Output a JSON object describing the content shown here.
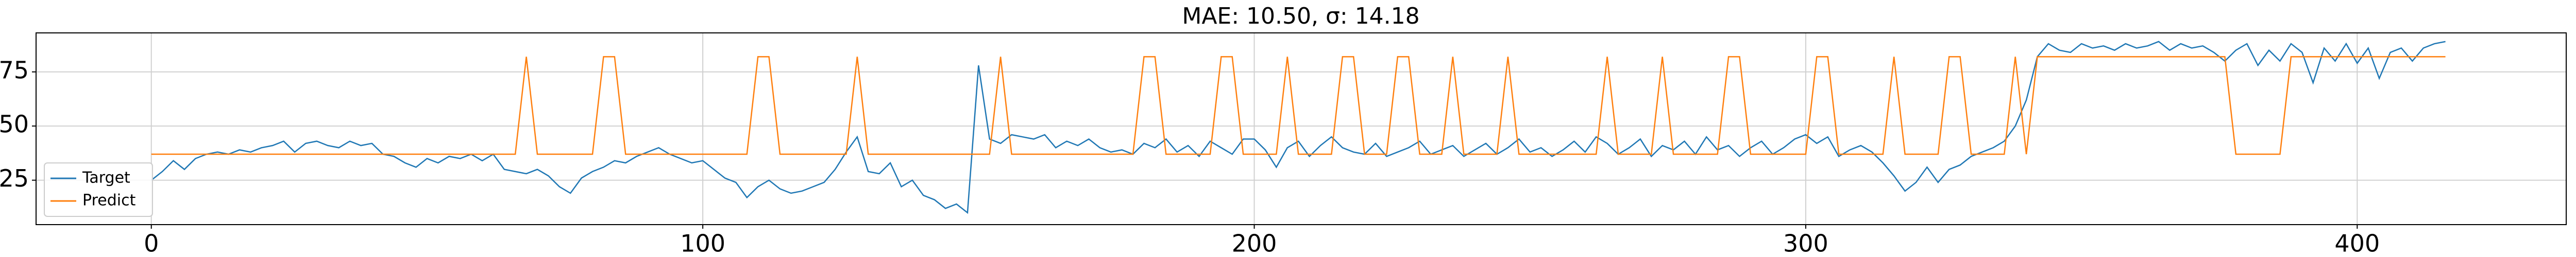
{
  "chart_data": {
    "type": "line",
    "title": "MAE: 10.50, σ: 14.18",
    "x": [
      0,
      2,
      4,
      6,
      8,
      10,
      12,
      14,
      16,
      18,
      20,
      22,
      24,
      26,
      28,
      30,
      32,
      34,
      36,
      38,
      40,
      42,
      44,
      46,
      48,
      50,
      52,
      54,
      56,
      58,
      60,
      62,
      64,
      66,
      68,
      70,
      72,
      74,
      76,
      78,
      80,
      82,
      84,
      86,
      88,
      90,
      92,
      94,
      96,
      98,
      100,
      102,
      104,
      106,
      108,
      110,
      112,
      114,
      116,
      118,
      120,
      122,
      124,
      126,
      128,
      130,
      132,
      134,
      136,
      138,
      140,
      142,
      144,
      146,
      148,
      150,
      152,
      154,
      156,
      158,
      160,
      162,
      164,
      166,
      168,
      170,
      172,
      174,
      176,
      178,
      180,
      182,
      184,
      186,
      188,
      190,
      192,
      194,
      196,
      198,
      200,
      202,
      204,
      206,
      208,
      210,
      212,
      214,
      216,
      218,
      220,
      222,
      224,
      226,
      228,
      230,
      232,
      234,
      236,
      238,
      240,
      242,
      244,
      246,
      248,
      250,
      252,
      254,
      256,
      258,
      260,
      262,
      264,
      266,
      268,
      270,
      272,
      274,
      276,
      278,
      280,
      282,
      284,
      286,
      288,
      290,
      292,
      294,
      296,
      298,
      300,
      302,
      304,
      306,
      308,
      310,
      312,
      314,
      316,
      318,
      320,
      322,
      324,
      326,
      328,
      330,
      332,
      334,
      336,
      338,
      340,
      342,
      344,
      346,
      348,
      350,
      352,
      354,
      356,
      358,
      360,
      362,
      364,
      366,
      368,
      370,
      372,
      374,
      376,
      378,
      380,
      382,
      384,
      386,
      388,
      390,
      392,
      394,
      396,
      398,
      400,
      402,
      404,
      406,
      408,
      410,
      412,
      414,
      416
    ],
    "series": [
      {
        "name": "Target",
        "color": "#1f77b4",
        "values": [
          25,
          29,
          34,
          30,
          35,
          37,
          38,
          37,
          39,
          38,
          40,
          41,
          43,
          38,
          42,
          43,
          41,
          40,
          43,
          41,
          42,
          37,
          36,
          33,
          31,
          35,
          33,
          36,
          35,
          37,
          34,
          37,
          30,
          29,
          28,
          30,
          27,
          22,
          19,
          26,
          29,
          31,
          34,
          33,
          36,
          38,
          40,
          37,
          35,
          33,
          34,
          30,
          26,
          24,
          17,
          22,
          25,
          21,
          19,
          20,
          22,
          24,
          30,
          38,
          45,
          29,
          28,
          33,
          22,
          25,
          18,
          16,
          12,
          14,
          10,
          78,
          44,
          42,
          46,
          45,
          44,
          46,
          40,
          43,
          41,
          44,
          40,
          38,
          39,
          37,
          42,
          40,
          44,
          38,
          41,
          36,
          43,
          40,
          37,
          44,
          44,
          39,
          31,
          40,
          43,
          36,
          41,
          45,
          40,
          38,
          37,
          42,
          36,
          38,
          40,
          43,
          37,
          39,
          41,
          36,
          39,
          42,
          37,
          40,
          44,
          38,
          40,
          36,
          39,
          43,
          38,
          45,
          42,
          37,
          40,
          44,
          36,
          41,
          39,
          43,
          37,
          45,
          39,
          41,
          36,
          40,
          43,
          37,
          40,
          44,
          46,
          42,
          45,
          36,
          39,
          41,
          38,
          33,
          27,
          20,
          24,
          31,
          24,
          30,
          32,
          36,
          38,
          40,
          43,
          50,
          62,
          82,
          88,
          85,
          84,
          88,
          86,
          87,
          85,
          88,
          86,
          87,
          89,
          85,
          88,
          86,
          87,
          84,
          80,
          85,
          88,
          78,
          85,
          80,
          88,
          84,
          70,
          86,
          80,
          88,
          79,
          86,
          72,
          84,
          86,
          80,
          86,
          88,
          89
        ]
      },
      {
        "name": "Predict",
        "color": "#ff7f0e",
        "values": [
          37,
          37,
          37,
          37,
          37,
          37,
          37,
          37,
          37,
          37,
          37,
          37,
          37,
          37,
          37,
          37,
          37,
          37,
          37,
          37,
          37,
          37,
          37,
          37,
          37,
          37,
          37,
          37,
          37,
          37,
          37,
          37,
          37,
          37,
          82,
          37,
          37,
          37,
          37,
          37,
          37,
          82,
          82,
          37,
          37,
          37,
          37,
          37,
          37,
          37,
          37,
          37,
          37,
          37,
          37,
          82,
          82,
          37,
          37,
          37,
          37,
          37,
          37,
          37,
          82,
          37,
          37,
          37,
          37,
          37,
          37,
          37,
          37,
          37,
          37,
          37,
          37,
          82,
          37,
          37,
          37,
          37,
          37,
          37,
          37,
          37,
          37,
          37,
          37,
          37,
          82,
          82,
          37,
          37,
          37,
          37,
          37,
          82,
          82,
          37,
          37,
          37,
          37,
          82,
          37,
          37,
          37,
          37,
          82,
          82,
          37,
          37,
          37,
          82,
          82,
          37,
          37,
          37,
          82,
          37,
          37,
          37,
          37,
          82,
          37,
          37,
          37,
          37,
          37,
          37,
          37,
          37,
          82,
          37,
          37,
          37,
          37,
          82,
          37,
          37,
          37,
          37,
          37,
          82,
          82,
          37,
          37,
          37,
          37,
          37,
          37,
          82,
          82,
          37,
          37,
          37,
          37,
          37,
          82,
          37,
          37,
          37,
          37,
          82,
          82,
          37,
          37,
          37,
          37,
          82,
          37,
          82,
          82,
          82,
          82,
          82,
          82,
          82,
          82,
          82,
          82,
          82,
          82,
          82,
          82,
          82,
          82,
          82,
          82,
          37,
          37,
          37,
          37,
          37,
          82,
          82,
          82,
          82,
          82,
          82,
          82,
          82,
          82,
          82,
          82,
          82,
          82,
          82,
          82
        ]
      }
    ],
    "xlim": [
      -20.9,
      437.9
    ],
    "ylim": [
      4.5,
      93
    ],
    "xticks": [
      0,
      100,
      200,
      300,
      400
    ],
    "yticks": [
      25,
      50,
      75
    ],
    "grid": true,
    "legend": "lower left"
  }
}
